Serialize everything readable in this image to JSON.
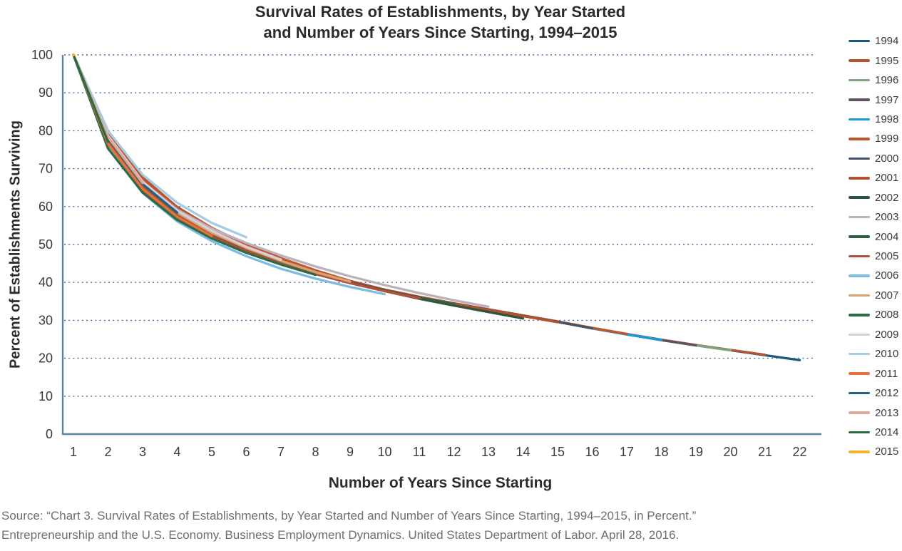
{
  "title": {
    "line1": "Survival Rates of Establishments, by Year Started",
    "line2": "and Number of Years Since Starting, 1994–2015"
  },
  "source": {
    "line1": "Source: “Chart 3. Survival Rates of Establishments, by Year Started and Number of Years Since Starting, 1994–2015, in Percent.”",
    "line2": "Entrepreneurship and the U.S. Economy. Business Employment Dynamics. United States Department of Labor. April 28, 2016."
  },
  "colors": {
    "axis": "#5b84a1",
    "gridline": "#44679c",
    "tick_text": "#3a3a3a",
    "title_text": "#2b2b2b",
    "source_text": "#6e6e6e"
  },
  "chart_data": {
    "type": "line",
    "title": "Survival Rates of Establishments, by Year Started and Number of Years Since Starting, 1994–2015",
    "xlabel": "Number of Years Since Starting",
    "ylabel": "Percent of Establishments Surviving",
    "xlim": [
      1,
      22
    ],
    "ylim": [
      0,
      100
    ],
    "xticks": [
      1,
      2,
      3,
      4,
      5,
      6,
      7,
      8,
      9,
      10,
      11,
      12,
      13,
      14,
      15,
      16,
      17,
      18,
      19,
      20,
      21,
      22
    ],
    "yticks": [
      0,
      10,
      20,
      30,
      40,
      50,
      60,
      70,
      80,
      90,
      100
    ],
    "grid": "horizontal-dotted",
    "legend_position": "right",
    "x_start": 1,
    "series": [
      {
        "name": "1994",
        "color": "#1c5a7d",
        "values": [
          100,
          79.0,
          66.8,
          59.1,
          53.7,
          49.6,
          46.1,
          43.0,
          40.3,
          38.0,
          36.1,
          34.4,
          32.8,
          31.2,
          29.6,
          27.9,
          26.3,
          24.8,
          23.4,
          22.1,
          20.8,
          19.5
        ]
      },
      {
        "name": "1995",
        "color": "#b65430",
        "values": [
          100,
          80.0,
          67.7,
          59.9,
          54.4,
          50.1,
          46.4,
          43.2,
          40.4,
          38.1,
          36.2,
          34.5,
          32.9,
          31.3,
          29.7,
          28.0,
          26.4,
          24.9,
          23.5,
          22.2,
          20.9
        ]
      },
      {
        "name": "1996",
        "color": "#7fa580",
        "values": [
          100,
          78.5,
          66.4,
          58.8,
          53.4,
          49.3,
          45.9,
          42.9,
          40.2,
          38.0,
          36.1,
          34.4,
          32.8,
          31.2,
          29.6,
          27.9,
          26.3,
          24.8,
          23.4,
          22.1
        ]
      },
      {
        "name": "1997",
        "color": "#5e5260",
        "values": [
          100,
          78.0,
          65.9,
          58.4,
          53.1,
          49.1,
          45.7,
          42.7,
          40.2,
          38.0,
          36.1,
          34.4,
          32.8,
          31.2,
          29.6,
          27.9,
          26.3,
          24.8,
          23.4
        ]
      },
      {
        "name": "1998",
        "color": "#169bdb",
        "values": [
          100,
          77.8,
          65.8,
          58.2,
          53.0,
          49.0,
          45.6,
          42.7,
          40.1,
          38.0,
          36.1,
          34.4,
          32.8,
          31.2,
          29.6,
          27.9,
          26.3,
          24.8
        ]
      },
      {
        "name": "1999",
        "color": "#c0572c",
        "values": [
          100,
          79.3,
          67.1,
          59.4,
          53.9,
          49.7,
          46.2,
          43.1,
          40.3,
          38.1,
          36.2,
          34.5,
          32.9,
          31.3,
          29.7,
          28.0,
          26.4
        ]
      },
      {
        "name": "2000",
        "color": "#47536a",
        "values": [
          100,
          77.5,
          65.5,
          58.0,
          52.8,
          48.8,
          45.5,
          42.6,
          40.1,
          38.0,
          36.1,
          34.4,
          32.8,
          31.2,
          29.6,
          27.9
        ]
      },
      {
        "name": "2001",
        "color": "#b2522e",
        "values": [
          100,
          77.0,
          65.1,
          57.6,
          52.5,
          48.6,
          45.3,
          42.5,
          40.0,
          37.9,
          36.0,
          34.3,
          32.7,
          31.1,
          29.5
        ]
      },
      {
        "name": "2002",
        "color": "#2b5540",
        "values": [
          100,
          76.3,
          64.5,
          57.1,
          52.1,
          48.2,
          45.1,
          42.3,
          39.9,
          37.7,
          35.7,
          33.9,
          32.2,
          30.5
        ]
      },
      {
        "name": "2003",
        "color": "#bcb1b8",
        "values": [
          100,
          78.3,
          66.5,
          59.2,
          54.2,
          50.4,
          47.1,
          44.2,
          41.6,
          39.3,
          37.2,
          35.3,
          33.6
        ]
      },
      {
        "name": "2004",
        "color": "#2d5f41",
        "values": [
          100,
          75.5,
          63.9,
          56.7,
          51.8,
          48.1,
          45.1,
          42.3,
          39.9,
          37.8,
          35.9,
          34.2
        ]
      },
      {
        "name": "2005",
        "color": "#b4503a",
        "values": [
          100,
          76.0,
          64.3,
          56.9,
          52.0,
          48.2,
          45.0,
          42.2,
          39.8,
          37.7,
          35.8
        ]
      },
      {
        "name": "2006",
        "color": "#7bbde2",
        "values": [
          100,
          75.8,
          63.6,
          56.1,
          50.9,
          46.9,
          43.6,
          41.0,
          38.8,
          36.9
        ]
      },
      {
        "name": "2007",
        "color": "#d3a377",
        "values": [
          100,
          78.0,
          65.9,
          58.4,
          53.1,
          49.1,
          45.7,
          42.7,
          40.2
        ]
      },
      {
        "name": "2008",
        "color": "#2e6b45",
        "values": [
          100,
          75.3,
          63.7,
          56.5,
          51.6,
          47.8,
          44.7,
          42.0
        ]
      },
      {
        "name": "2009",
        "color": "#d9ced6",
        "values": [
          100,
          78.7,
          66.6,
          58.9,
          53.6,
          49.4,
          46.0
        ]
      },
      {
        "name": "2010",
        "color": "#a5cbe5",
        "values": [
          100,
          80.0,
          68.4,
          61.0,
          55.7,
          51.9
        ]
      },
      {
        "name": "2011",
        "color": "#e8703d",
        "values": [
          100,
          76.5,
          64.7,
          57.3,
          52.2
        ]
      },
      {
        "name": "2012",
        "color": "#24617f",
        "values": [
          100,
          78.0,
          65.9,
          58.4
        ]
      },
      {
        "name": "2013",
        "color": "#e0a897",
        "values": [
          100,
          78.3,
          66.2
        ]
      },
      {
        "name": "2014",
        "color": "#2c6b3f",
        "values": [
          100,
          77.1
        ]
      },
      {
        "name": "2015",
        "color": "#f2b32d",
        "values": [
          100
        ]
      }
    ]
  }
}
